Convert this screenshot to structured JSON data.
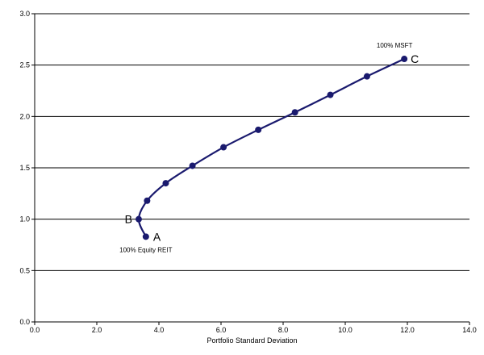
{
  "chart_data": {
    "type": "line",
    "title": "",
    "xlabel": "Portfolio Standard Deviation",
    "ylabel": "",
    "xlim": [
      0,
      14
    ],
    "ylim": [
      0,
      3
    ],
    "x_ticks": [
      "0.0",
      "2.0",
      "4.0",
      "6.0",
      "8.0",
      "10.0",
      "12.0",
      "14.0"
    ],
    "y_ticks": [
      "0.0",
      "0.5",
      "1.0",
      "1.5",
      "2.0",
      "2.5",
      "3.0"
    ],
    "grid": "horizontal",
    "legend": "none",
    "series": [
      {
        "color": "#1a1a6e",
        "x": [
          3.58,
          3.35,
          3.62,
          4.22,
          5.08,
          6.08,
          7.2,
          8.38,
          9.52,
          10.7,
          11.9
        ],
        "y": [
          0.83,
          1.0,
          1.18,
          1.35,
          1.52,
          1.7,
          1.87,
          2.04,
          2.21,
          2.39,
          2.56
        ]
      }
    ],
    "annotations": [
      {
        "letter": "A",
        "note": "100% Equity REIT",
        "x": 3.58,
        "y": 0.83
      },
      {
        "letter": "B",
        "note": "",
        "x": 3.35,
        "y": 1.0
      },
      {
        "letter": "C",
        "note": "100% MSFT",
        "x": 11.9,
        "y": 2.56
      }
    ]
  }
}
